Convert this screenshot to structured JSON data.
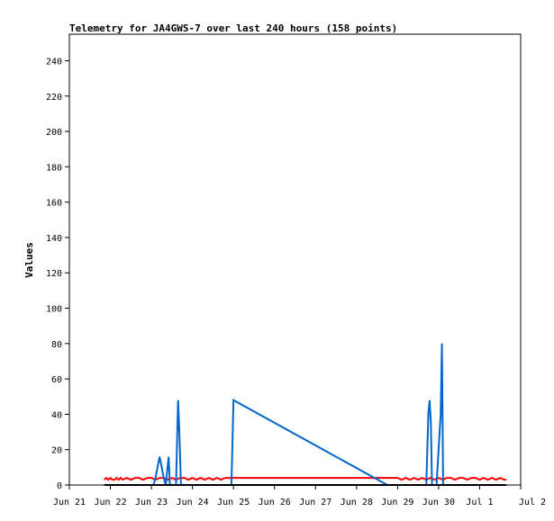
{
  "chart_data": {
    "type": "line",
    "title": "Telemetry for JA4GWS-7 over last 240 hours (158 points)",
    "xlabel": "",
    "ylabel": "Values",
    "x_ticks": [
      "Jun 21",
      "Jun 22",
      "Jun 23",
      "Jun 24",
      "Jun 25",
      "Jun 26",
      "Jun 27",
      "Jun 28",
      "Jun 29",
      "Jun 30",
      "Jul 1",
      "Jul 2"
    ],
    "y_ticks": [
      0,
      20,
      40,
      60,
      80,
      100,
      120,
      140,
      160,
      180,
      200,
      220,
      240
    ],
    "xlim": [
      0,
      11
    ],
    "ylim": [
      0,
      255
    ],
    "grid": false,
    "legend": "none",
    "series": [
      {
        "color": "#ff0000",
        "points": [
          [
            0.85,
            3
          ],
          [
            0.9,
            4
          ],
          [
            0.95,
            3
          ],
          [
            1.0,
            4
          ],
          [
            1.05,
            3
          ],
          [
            1.1,
            3
          ],
          [
            1.15,
            4
          ],
          [
            1.2,
            3
          ],
          [
            1.25,
            4
          ],
          [
            1.3,
            3
          ],
          [
            1.4,
            4
          ],
          [
            1.5,
            3
          ],
          [
            1.6,
            4
          ],
          [
            1.7,
            4
          ],
          [
            1.8,
            3
          ],
          [
            1.9,
            4
          ],
          [
            2.0,
            4
          ],
          [
            2.1,
            3
          ],
          [
            2.2,
            4
          ],
          [
            2.3,
            4
          ],
          [
            2.4,
            3
          ],
          [
            2.5,
            4
          ],
          [
            2.6,
            3
          ],
          [
            2.7,
            4
          ],
          [
            2.8,
            4
          ],
          [
            2.9,
            3
          ],
          [
            3.0,
            4
          ],
          [
            3.1,
            3
          ],
          [
            3.2,
            4
          ],
          [
            3.3,
            3
          ],
          [
            3.4,
            4
          ],
          [
            3.5,
            3
          ],
          [
            3.6,
            4
          ],
          [
            3.7,
            3
          ],
          [
            3.8,
            4
          ],
          [
            3.9,
            4
          ],
          [
            4.0,
            4
          ],
          [
            5.0,
            4
          ],
          [
            6.0,
            4
          ],
          [
            7.0,
            4
          ],
          [
            8.0,
            4
          ],
          [
            8.1,
            3
          ],
          [
            8.2,
            4
          ],
          [
            8.3,
            3
          ],
          [
            8.4,
            4
          ],
          [
            8.5,
            3
          ],
          [
            8.6,
            4
          ],
          [
            8.7,
            3
          ],
          [
            8.8,
            4
          ],
          [
            8.9,
            3
          ],
          [
            9.0,
            4
          ],
          [
            9.1,
            3
          ],
          [
            9.2,
            4
          ],
          [
            9.3,
            4
          ],
          [
            9.4,
            3
          ],
          [
            9.5,
            4
          ],
          [
            9.6,
            4
          ],
          [
            9.7,
            3
          ],
          [
            9.8,
            4
          ],
          [
            9.9,
            4
          ],
          [
            10.0,
            3
          ],
          [
            10.1,
            4
          ],
          [
            10.2,
            3
          ],
          [
            10.3,
            4
          ],
          [
            10.4,
            3
          ],
          [
            10.5,
            4
          ],
          [
            10.6,
            3
          ],
          [
            10.65,
            3
          ]
        ]
      },
      {
        "color": "#0066cc",
        "points": [
          [
            2.05,
            0
          ],
          [
            2.1,
            4
          ],
          [
            2.2,
            16
          ],
          [
            2.3,
            4
          ],
          [
            2.35,
            0
          ],
          [
            2.42,
            16
          ],
          [
            2.45,
            0
          ],
          [
            2.6,
            0
          ],
          [
            2.65,
            48
          ],
          [
            2.68,
            30
          ],
          [
            2.72,
            0
          ],
          [
            2.8,
            0
          ],
          [
            3.95,
            0
          ],
          [
            4.0,
            48
          ],
          [
            7.75,
            0
          ],
          [
            7.9,
            0
          ],
          [
            8.7,
            0
          ],
          [
            8.75,
            40
          ],
          [
            8.78,
            48
          ],
          [
            8.81,
            35
          ],
          [
            8.84,
            0
          ],
          [
            8.95,
            0
          ],
          [
            9.05,
            40
          ],
          [
            9.08,
            80
          ],
          [
            9.11,
            0
          ]
        ]
      },
      {
        "color": "#000000",
        "points": [
          [
            0.85,
            0
          ],
          [
            10.65,
            0
          ]
        ]
      }
    ]
  }
}
